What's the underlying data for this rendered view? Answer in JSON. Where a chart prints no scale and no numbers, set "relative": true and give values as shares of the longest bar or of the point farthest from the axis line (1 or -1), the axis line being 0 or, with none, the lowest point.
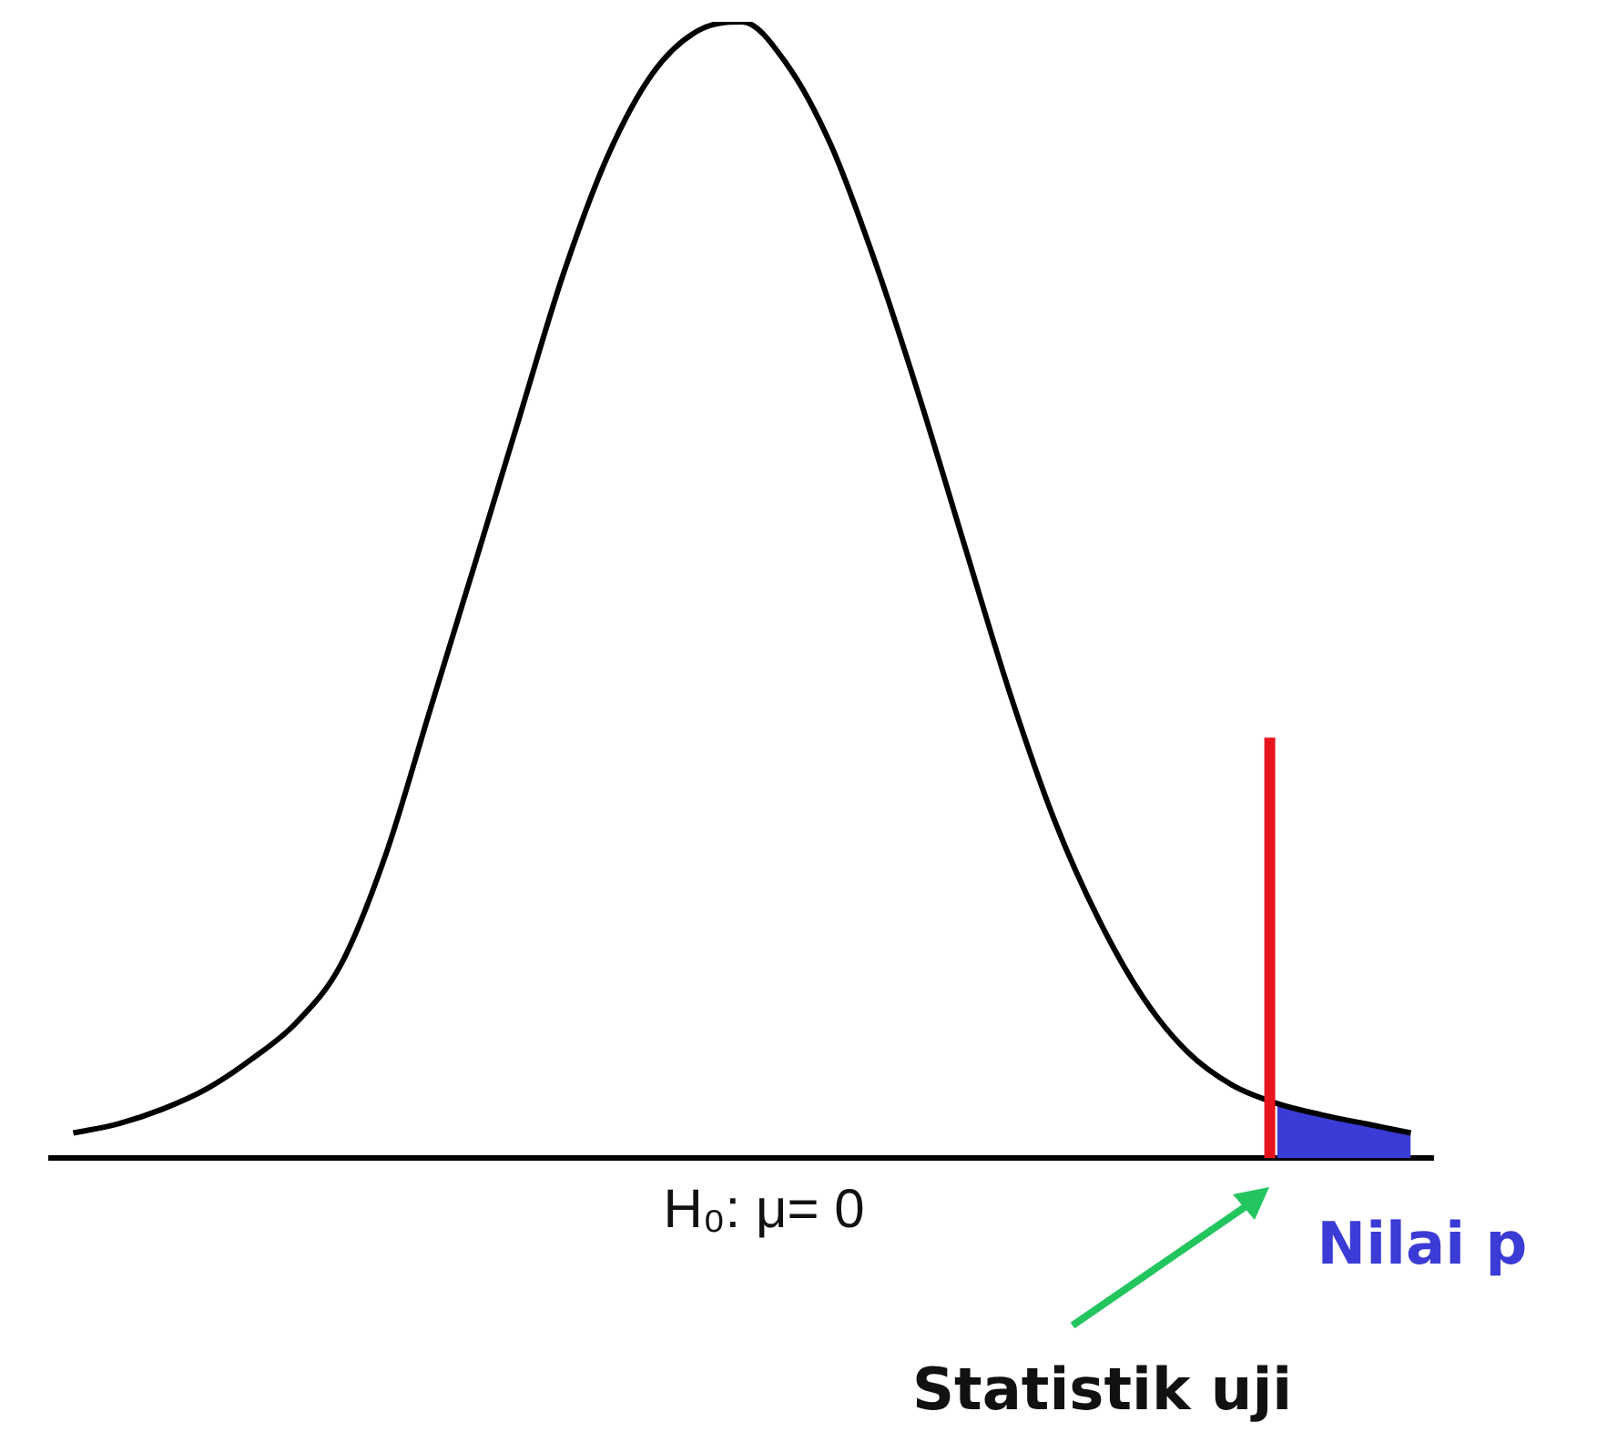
{
  "chart_data": {
    "type": "line",
    "relative": true,
    "tick_labels": false,
    "grid": false,
    "legend": false,
    "marker": "none",
    "line_style": "solid",
    "categories": [
      null,
      null,
      null,
      null,
      null,
      null,
      null,
      null,
      null,
      null,
      null,
      null,
      null,
      null,
      null,
      null,
      null,
      null,
      null,
      null,
      null,
      null,
      null,
      null,
      null,
      null,
      null,
      null,
      null,
      null,
      null
    ],
    "series": [
      {
        "color": "#000000",
        "values": [
          0.022,
          0.03,
          0.043,
          0.061,
          0.087,
          0.119,
          0.17,
          0.266,
          0.394,
          0.522,
          0.651,
          0.779,
          0.883,
          0.955,
          0.992,
          1.0,
          0.963,
          0.891,
          0.787,
          0.667,
          0.538,
          0.41,
          0.298,
          0.21,
          0.141,
          0.093,
          0.064,
          0.048,
          0.038,
          0.03,
          0.022
        ]
      },
      {
        "type": "area",
        "name": "Nilai p",
        "color": "#3b3bd6",
        "values": [
          null,
          null,
          null,
          null,
          null,
          null,
          null,
          null,
          null,
          null,
          null,
          null,
          null,
          null,
          null,
          null,
          null,
          null,
          null,
          null,
          null,
          null,
          null,
          null,
          null,
          null,
          null,
          0.048,
          0.038,
          0.03,
          0.022
        ]
      }
    ],
    "ref_lines": [
      {
        "axis": "x",
        "label": "Statistik uji",
        "color": "#e8141c"
      }
    ],
    "annotations": [
      "H₀: μ= 0"
    ]
  }
}
